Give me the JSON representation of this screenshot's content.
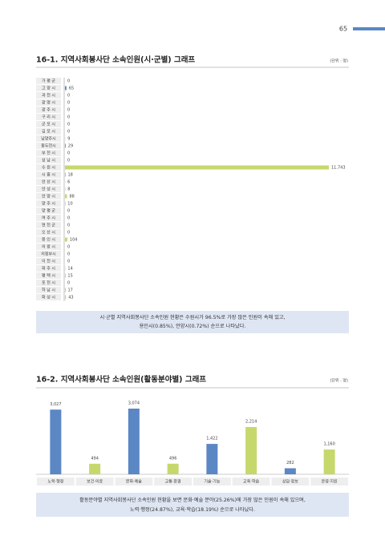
{
  "page_number": "65",
  "sections": [
    {
      "title": "16-1. 지역사회봉사단 소속인원(시·군별) 그래프",
      "unit": "(단위 : 명)",
      "chart_data": {
        "type": "hbar",
        "categories": [
          "가 평 군",
          "고 양 시",
          "과 천 시",
          "광 명 시",
          "광 주 시",
          "구 리 시",
          "군 포 시",
          "김 포 시",
          "남양주시",
          "동두천시",
          "부 천 시",
          "성 남 시",
          "수 원 시",
          "시 흥 시",
          "안 산 시",
          "안 성 시",
          "안 양 시",
          "양 주 시",
          "양 평 군",
          "여 주 시",
          "연 천 군",
          "오 산 시",
          "용 인 시",
          "의 왕 시",
          "의정부시",
          "이 천 시",
          "파 주 시",
          "평 택 시",
          "포 천 시",
          "하 남 시",
          "화 성 시"
        ],
        "values": [
          0,
          65,
          0,
          0,
          0,
          0,
          0,
          0,
          9,
          29,
          0,
          0,
          11743,
          18,
          6,
          8,
          88,
          10,
          0,
          0,
          0,
          0,
          104,
          0,
          0,
          0,
          14,
          15,
          0,
          17,
          43
        ],
        "value_labels": [
          "0",
          "65",
          "0",
          "0",
          "0",
          "0",
          "0",
          "0",
          "9",
          "29",
          "0",
          "0",
          "11,743",
          "18",
          "6",
          "8",
          "88",
          "10",
          "0",
          "0",
          "0",
          "0",
          "104",
          "0",
          "0",
          "0",
          "14",
          "15",
          "0",
          "17",
          "43"
        ],
        "colors": [
          "#c6d86c",
          "#5b87c5"
        ]
      },
      "note": [
        "시·군별 지역사회봉사단 소속인원 현황은 수원시가 96.5%로 가장 많은 인원이 속해 있고,",
        "용인시(0.85%), 안양시(0.72%) 순으로 나타났다."
      ]
    },
    {
      "title": "16-2. 지역사회봉사단 소속인원(활동분야별) 그래프",
      "unit": "(단위 : 명)",
      "chart_data": {
        "type": "bar",
        "categories": [
          "노력·행정",
          "보건·의료",
          "문화·예술",
          "교통·환경",
          "기술·기능",
          "교육·학습",
          "상담·정보",
          "운영·지원"
        ],
        "values": [
          3027,
          494,
          3074,
          496,
          1422,
          2214,
          282,
          1160
        ],
        "value_labels": [
          "3,027",
          "494",
          "3,074",
          "496",
          "1,422",
          "2,214",
          "282",
          "1,160"
        ],
        "colors": [
          "#5b87c5",
          "#c6d86c"
        ]
      },
      "note": [
        "활동분야별 지역사회봉사단 소속인원 현황을 보면 문화·예술 분야(25.26%)에 가장 많은 인원이 속해 있으며,",
        "노력·행정(24.87%), 교육·학습(18.19%) 순으로 나타났다."
      ]
    }
  ]
}
